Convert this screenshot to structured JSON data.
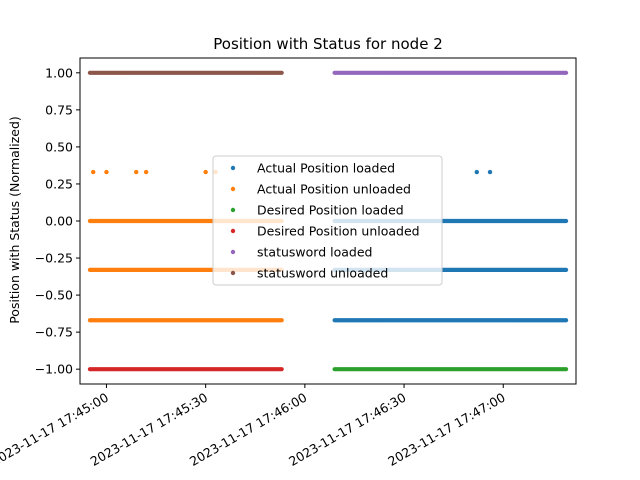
{
  "chart_data": {
    "type": "scatter",
    "title": "Position with Status for node 2",
    "xlabel": "",
    "ylabel": "Position with Status (Normalized)",
    "xlim": [
      "2023-11-17 17:44:52",
      "2023-11-17 17:47:22"
    ],
    "ylim": [
      -1.1,
      1.1
    ],
    "x_ticks": [
      "2023-11-17 17:45:00",
      "2023-11-17 17:45:30",
      "2023-11-17 17:46:00",
      "2023-11-17 17:46:30",
      "2023-11-17 17:47:00"
    ],
    "y_ticks": [
      "1.00",
      "0.75",
      "0.50",
      "0.25",
      "0.00",
      "−0.25",
      "−0.50",
      "−0.75",
      "−1.00"
    ],
    "y_tick_values": [
      1.0,
      0.75,
      0.5,
      0.25,
      0.0,
      -0.25,
      -0.5,
      -0.75,
      -1.0
    ],
    "grid": false,
    "legend_position": "center",
    "series": [
      {
        "name": "Actual Position loaded",
        "color": "#1f77b4",
        "bands": [
          {
            "y": 0.0,
            "start": "2023-11-17 17:46:09",
            "end": "2023-11-17 17:47:19"
          },
          {
            "y": -0.33,
            "start": "2023-11-17 17:46:09",
            "end": "2023-11-17 17:47:19"
          },
          {
            "y": -0.67,
            "start": "2023-11-17 17:46:09",
            "end": "2023-11-17 17:47:19"
          }
        ],
        "points": [
          {
            "x": "2023-11-17 17:46:52",
            "y": 0.33
          },
          {
            "x": "2023-11-17 17:46:56",
            "y": 0.33
          }
        ]
      },
      {
        "name": "Actual Position unloaded",
        "color": "#ff7f0e",
        "bands": [
          {
            "y": 0.0,
            "start": "2023-11-17 17:44:55",
            "end": "2023-11-17 17:45:53"
          },
          {
            "y": -0.33,
            "start": "2023-11-17 17:44:55",
            "end": "2023-11-17 17:45:53"
          },
          {
            "y": -0.67,
            "start": "2023-11-17 17:44:55",
            "end": "2023-11-17 17:45:53"
          }
        ],
        "points": [
          {
            "x": "2023-11-17 17:44:56",
            "y": 0.33
          },
          {
            "x": "2023-11-17 17:45:00",
            "y": 0.33
          },
          {
            "x": "2023-11-17 17:45:09",
            "y": 0.33
          },
          {
            "x": "2023-11-17 17:45:12",
            "y": 0.33
          },
          {
            "x": "2023-11-17 17:45:30",
            "y": 0.33
          },
          {
            "x": "2023-11-17 17:45:33",
            "y": 0.33
          }
        ]
      },
      {
        "name": "Desired Position loaded",
        "color": "#2ca02c",
        "bands": [
          {
            "y": -1.0,
            "start": "2023-11-17 17:46:09",
            "end": "2023-11-17 17:47:19"
          }
        ],
        "points": []
      },
      {
        "name": "Desired Position unloaded",
        "color": "#d62728",
        "bands": [
          {
            "y": -1.0,
            "start": "2023-11-17 17:44:55",
            "end": "2023-11-17 17:45:53"
          }
        ],
        "points": []
      },
      {
        "name": "statusword loaded",
        "color": "#9467bd",
        "bands": [
          {
            "y": 1.0,
            "start": "2023-11-17 17:46:09",
            "end": "2023-11-17 17:47:19"
          }
        ],
        "points": []
      },
      {
        "name": "statusword unloaded",
        "color": "#8c564b",
        "bands": [
          {
            "y": 1.0,
            "start": "2023-11-17 17:44:55",
            "end": "2023-11-17 17:45:53"
          }
        ],
        "points": []
      }
    ]
  }
}
